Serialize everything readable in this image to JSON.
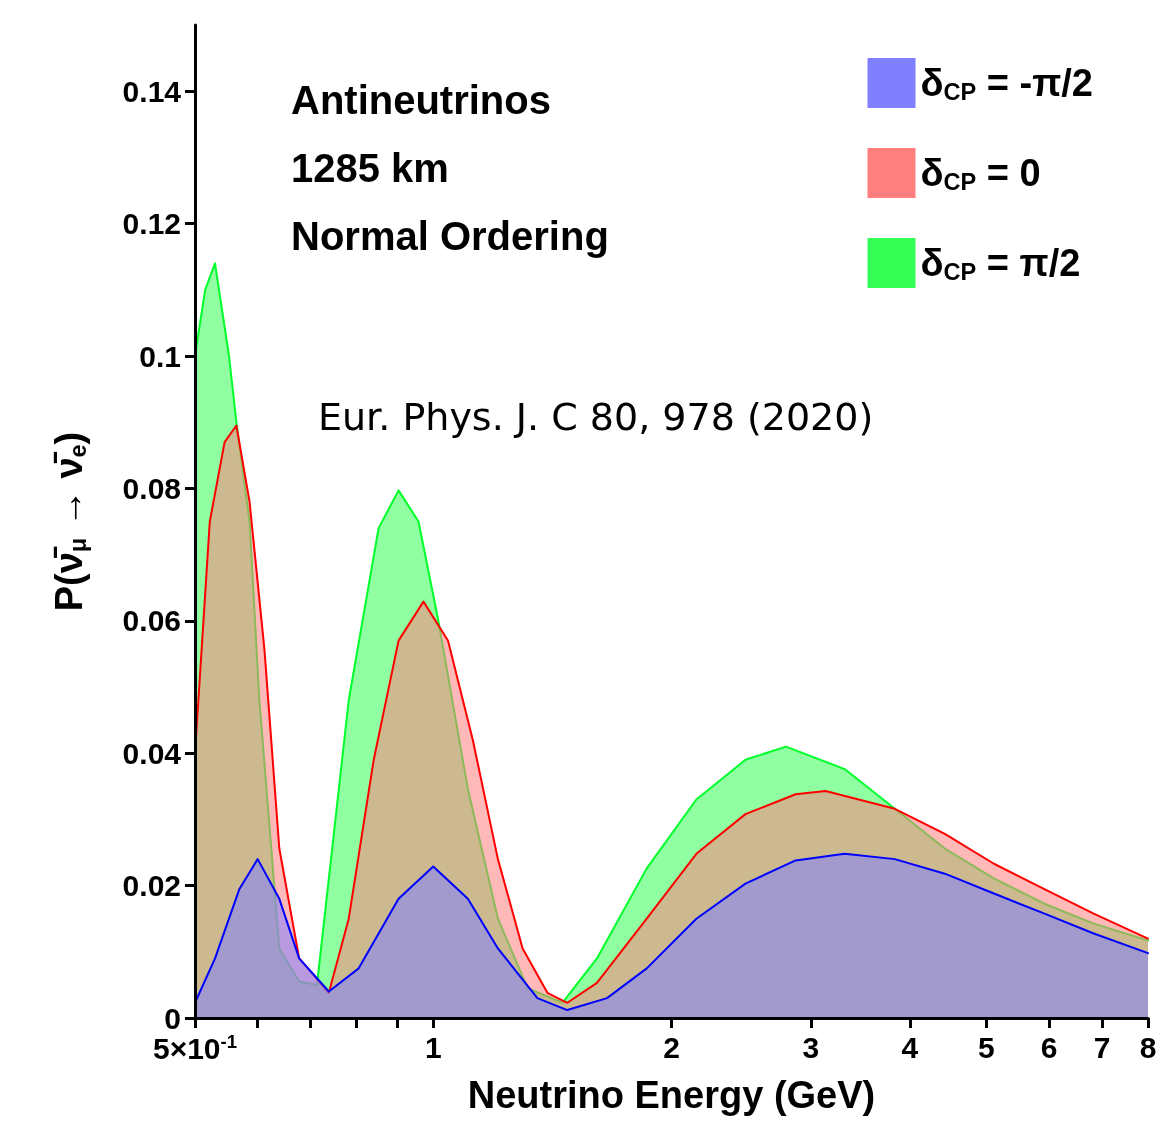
{
  "chart_data": {
    "type": "area",
    "xlabel": "Neutrino Energy (GeV)",
    "ylabel": "P(ν̄$_{μ}$ → ν̄$_{e}$)",
    "annotations": [
      "Antineutrinos",
      "1285 km",
      "Normal Ordering",
      "Eur. Phys. J. C 80, 978 (2020)"
    ],
    "log": "x",
    "xlim": [
      0.5,
      8
    ],
    "xticks": [
      {
        "value": 0.5,
        "label": "5×10$^{-1}$"
      },
      {
        "value": 0.6,
        "label": null
      },
      {
        "value": 0.7,
        "label": null
      },
      {
        "value": 0.8,
        "label": null
      },
      {
        "value": 0.9,
        "label": null
      },
      1,
      2,
      3,
      4,
      5,
      6,
      7,
      8
    ],
    "ylim": [
      0,
      0.15
    ],
    "yticks": [
      {
        "value": 0,
        "label": "0"
      },
      0.02,
      0.04,
      0.06,
      0.08,
      0.1,
      0.12,
      0.14
    ],
    "grid": false,
    "legend": "top right",
    "marker": "none",
    "line_style": "solid",
    "series": [
      {
        "name": "δ$_{CP}$ = -π/2",
        "color": "#7f7fff",
        "x": [
          0.5,
          0.53,
          0.569,
          0.6,
          0.639,
          0.677,
          0.738,
          0.805,
          0.904,
          1.0,
          1.106,
          1.207,
          1.354,
          1.477,
          1.658,
          1.861,
          2.15,
          2.48,
          2.87,
          3.31,
          3.83,
          4.43,
          5.11,
          5.91,
          6.82,
          8
        ],
        "values": [
          0.0023,
          0.009,
          0.0195,
          0.024,
          0.018,
          0.009,
          0.004,
          0.0075,
          0.018,
          0.0229,
          0.018,
          0.0105,
          0.003,
          0.0012,
          0.003,
          0.0075,
          0.015,
          0.0203,
          0.0238,
          0.0248,
          0.024,
          0.0218,
          0.0188,
          0.0158,
          0.0128,
          0.0098
        ]
      },
      {
        "name": "δ$_{CP}$ = 0",
        "color": "#ff7f7f",
        "x": [
          0.5,
          0.522,
          0.545,
          0.564,
          0.586,
          0.612,
          0.639,
          0.677,
          0.738,
          0.782,
          0.841,
          0.904,
          0.972,
          1.044,
          1.122,
          1.207,
          1.297,
          1.394,
          1.477,
          1.61,
          1.861,
          2.15,
          2.48,
          2.87,
          3.13,
          3.83,
          4.43,
          5.11,
          5.91,
          6.82,
          8
        ],
        "values": [
          0.04,
          0.075,
          0.087,
          0.0895,
          0.078,
          0.0556,
          0.0256,
          0.009,
          0.0038,
          0.015,
          0.039,
          0.057,
          0.0629,
          0.057,
          0.042,
          0.024,
          0.0105,
          0.0038,
          0.0023,
          0.0053,
          0.015,
          0.0248,
          0.0308,
          0.0338,
          0.0343,
          0.0316,
          0.0278,
          0.0233,
          0.0195,
          0.0158,
          0.012
        ]
      },
      {
        "name": "δ$_{CP}$ = π/2",
        "color": "#33ff55",
        "x": [
          0.5,
          0.515,
          0.53,
          0.552,
          0.564,
          0.586,
          0.603,
          0.639,
          0.677,
          0.713,
          0.782,
          0.853,
          0.904,
          0.958,
          1.015,
          1.106,
          1.207,
          1.316,
          1.456,
          1.61,
          1.861,
          2.15,
          2.48,
          2.79,
          3.31,
          3.83,
          4.43,
          5.11,
          5.91,
          6.82,
          8
        ],
        "values": [
          0.1,
          0.11,
          0.114,
          0.1,
          0.09,
          0.075,
          0.048,
          0.0105,
          0.0055,
          0.005,
          0.048,
          0.074,
          0.0797,
          0.075,
          0.06,
          0.0346,
          0.015,
          0.0045,
          0.0023,
          0.009,
          0.0226,
          0.033,
          0.039,
          0.041,
          0.0376,
          0.0316,
          0.0256,
          0.0211,
          0.0173,
          0.0143,
          0.0117
        ]
      }
    ]
  }
}
